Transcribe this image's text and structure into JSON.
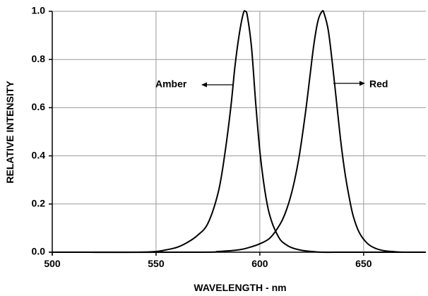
{
  "chart_data": {
    "type": "line",
    "title": "",
    "xlabel": "WAVELENGTH - nm",
    "ylabel": "RELATIVE INTENSITY",
    "xlim": [
      500,
      680
    ],
    "ylim": [
      0,
      1.0
    ],
    "x_ticks": [
      {
        "value": 500,
        "label": "500"
      },
      {
        "value": 550,
        "label": "550"
      },
      {
        "value": 600,
        "label": "600"
      },
      {
        "value": 650,
        "label": "650"
      }
    ],
    "y_ticks": [
      {
        "value": 0.0,
        "label": "0.0"
      },
      {
        "value": 0.2,
        "label": "0.2"
      },
      {
        "value": 0.4,
        "label": "0.4"
      },
      {
        "value": 0.6,
        "label": "0.6"
      },
      {
        "value": 0.8,
        "label": "0.8"
      },
      {
        "value": 1.0,
        "label": "1.0"
      }
    ],
    "grid": true,
    "line_color": "#000000",
    "grid_color": "#9a9a9a",
    "series": [
      {
        "name": "Amber",
        "x": [
          500,
          540,
          550,
          555,
          560,
          565,
          570,
          575,
          580,
          583,
          586,
          588,
          590,
          592,
          593,
          594,
          596,
          598,
          600,
          602,
          604,
          606,
          608,
          610,
          612,
          615,
          620,
          625,
          630,
          640,
          650,
          680
        ],
        "y": [
          0.0,
          0.0,
          0.003,
          0.01,
          0.02,
          0.04,
          0.07,
          0.12,
          0.25,
          0.4,
          0.6,
          0.77,
          0.9,
          0.99,
          1.0,
          0.98,
          0.85,
          0.62,
          0.42,
          0.28,
          0.18,
          0.12,
          0.08,
          0.05,
          0.035,
          0.02,
          0.008,
          0.003,
          0.0,
          0.0,
          0.0,
          0.0
        ]
      },
      {
        "name": "Red",
        "x": [
          500,
          570,
          580,
          590,
          595,
          600,
          605,
          610,
          613,
          616,
          619,
          622,
          624,
          626,
          628,
          630,
          631,
          633,
          635,
          637,
          639,
          641,
          643,
          645,
          648,
          652,
          656,
          660,
          665,
          670,
          680
        ],
        "y": [
          0.0,
          0.0,
          0.003,
          0.01,
          0.02,
          0.035,
          0.06,
          0.12,
          0.18,
          0.27,
          0.4,
          0.58,
          0.72,
          0.86,
          0.96,
          1.0,
          0.99,
          0.92,
          0.78,
          0.62,
          0.46,
          0.33,
          0.23,
          0.15,
          0.08,
          0.035,
          0.015,
          0.006,
          0.002,
          0.0,
          0.0
        ]
      }
    ],
    "annotations": [
      {
        "text": "Amber",
        "series": "Amber"
      },
      {
        "text": "Red",
        "series": "Red"
      }
    ]
  }
}
